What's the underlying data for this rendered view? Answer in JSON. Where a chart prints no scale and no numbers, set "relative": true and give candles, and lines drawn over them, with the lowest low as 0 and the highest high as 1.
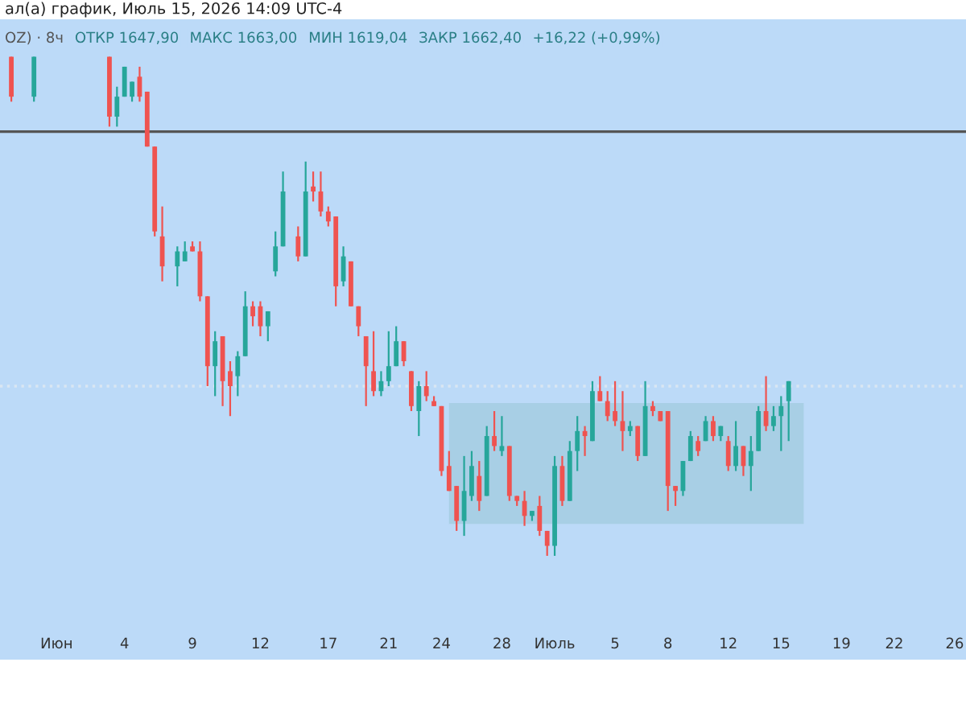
{
  "chart_data": {
    "type": "candlestick",
    "title": "ал(а) график, Июль 15, 2026 14:09 UTC-4",
    "annotations": [
      "OZ) · 8ч",
      "ОТКР 1647,90",
      "МАКС 1663,00",
      "МИН 1619,04",
      "ЗАКР 1662,40",
      "+16,22 (+0,99%)"
    ],
    "relative": true,
    "categories": [
      null,
      null,
      null,
      null,
      null,
      null,
      null,
      "Июн",
      null,
      null,
      null,
      null,
      null,
      null,
      null,
      null,
      "4",
      null,
      null,
      null,
      null,
      null,
      null,
      null,
      null,
      "9",
      null,
      null,
      null,
      null,
      null,
      null,
      null,
      null,
      "12",
      null,
      null,
      null,
      null,
      null,
      null,
      null,
      null,
      "17",
      null,
      null,
      null,
      null,
      null,
      null,
      null,
      "21",
      null,
      null,
      null,
      null,
      null,
      null,
      "24",
      null,
      null,
      null,
      null,
      null,
      null,
      null,
      "28",
      null,
      null,
      null,
      null,
      null,
      null,
      "Июль",
      null,
      null,
      null,
      null,
      null,
      null,
      null,
      "5",
      null,
      null,
      null,
      null,
      null,
      null,
      "8",
      null,
      null,
      null,
      null,
      null,
      null,
      null,
      "12",
      null,
      null,
      null,
      null,
      null,
      null,
      "15",
      null,
      null,
      null,
      null,
      null,
      null,
      null,
      "19",
      null,
      null,
      null,
      null,
      null,
      null,
      "22",
      null,
      null,
      null,
      null,
      null,
      null,
      null,
      "26",
      null
    ],
    "ohlc": [
      null,
      [
        1.0,
        1.0,
        0.91,
        0.92
      ],
      null,
      null,
      [
        0.92,
        1.0,
        0.91,
        1.0
      ],
      null,
      null,
      null,
      null,
      null,
      null,
      null,
      null,
      null,
      [
        1.0,
        1.0,
        0.86,
        0.88
      ],
      [
        0.88,
        0.94,
        0.86,
        0.92
      ],
      [
        0.92,
        0.98,
        0.92,
        0.98
      ],
      [
        0.92,
        0.95,
        0.91,
        0.95
      ],
      [
        0.96,
        0.98,
        0.91,
        0.92
      ],
      [
        0.93,
        0.93,
        0.82,
        0.82
      ],
      [
        0.82,
        0.82,
        0.64,
        0.65
      ],
      [
        0.64,
        0.7,
        0.55,
        0.58
      ],
      null,
      [
        0.58,
        0.62,
        0.54,
        0.61
      ],
      [
        0.59,
        0.63,
        0.59,
        0.61
      ],
      [
        0.62,
        0.63,
        0.61,
        0.61
      ],
      [
        0.61,
        0.63,
        0.51,
        0.52
      ],
      [
        0.52,
        0.52,
        0.34,
        0.38
      ],
      [
        0.38,
        0.45,
        0.32,
        0.43
      ],
      [
        0.44,
        0.44,
        0.3,
        0.35
      ],
      [
        0.37,
        0.39,
        0.28,
        0.34
      ],
      [
        0.36,
        0.41,
        0.32,
        0.4
      ],
      [
        0.4,
        0.53,
        0.4,
        0.5
      ],
      [
        0.5,
        0.51,
        0.46,
        0.48
      ],
      [
        0.5,
        0.51,
        0.44,
        0.46
      ],
      [
        0.46,
        0.49,
        0.43,
        0.49
      ],
      [
        0.57,
        0.65,
        0.56,
        0.62
      ],
      [
        0.62,
        0.77,
        0.62,
        0.73
      ],
      null,
      [
        0.64,
        0.66,
        0.59,
        0.6
      ],
      [
        0.6,
        0.79,
        0.6,
        0.73
      ],
      [
        0.74,
        0.77,
        0.71,
        0.73
      ],
      [
        0.73,
        0.77,
        0.68,
        0.69
      ],
      [
        0.69,
        0.7,
        0.66,
        0.67
      ],
      [
        0.68,
        0.68,
        0.5,
        0.54
      ],
      [
        0.55,
        0.62,
        0.54,
        0.6
      ],
      [
        0.59,
        0.59,
        0.5,
        0.5
      ],
      [
        0.5,
        0.5,
        0.44,
        0.46
      ],
      [
        0.44,
        0.44,
        0.3,
        0.38
      ],
      [
        0.37,
        0.45,
        0.32,
        0.33
      ],
      [
        0.33,
        0.37,
        0.32,
        0.35
      ],
      [
        0.35,
        0.45,
        0.34,
        0.38
      ],
      [
        0.38,
        0.46,
        0.38,
        0.43
      ],
      [
        0.43,
        0.43,
        0.38,
        0.39
      ],
      [
        0.37,
        0.37,
        0.29,
        0.3
      ],
      [
        0.29,
        0.35,
        0.24,
        0.34
      ],
      [
        0.34,
        0.37,
        0.31,
        0.32
      ],
      [
        0.31,
        0.32,
        0.3,
        0.3
      ],
      [
        0.3,
        0.3,
        0.16,
        0.17
      ],
      [
        0.18,
        0.21,
        0.13,
        0.13
      ],
      [
        0.14,
        0.14,
        0.05,
        0.07
      ],
      [
        0.07,
        0.2,
        0.04,
        0.13
      ],
      [
        0.12,
        0.21,
        0.11,
        0.18
      ],
      [
        0.16,
        0.19,
        0.09,
        0.11
      ],
      [
        0.12,
        0.26,
        0.12,
        0.24
      ],
      [
        0.24,
        0.29,
        0.21,
        0.22
      ],
      [
        0.21,
        0.28,
        0.2,
        0.22
      ],
      [
        0.22,
        0.22,
        0.11,
        0.12
      ],
      [
        0.12,
        0.12,
        0.1,
        0.11
      ],
      [
        0.11,
        0.13,
        0.06,
        0.08
      ],
      [
        0.08,
        0.09,
        0.07,
        0.09
      ],
      [
        0.1,
        0.12,
        0.04,
        0.05
      ],
      [
        0.05,
        0.05,
        0.0,
        0.02
      ],
      [
        0.02,
        0.2,
        0.0,
        0.18
      ],
      [
        0.18,
        0.2,
        0.1,
        0.11
      ],
      [
        0.11,
        0.23,
        0.11,
        0.21
      ],
      [
        0.21,
        0.28,
        0.17,
        0.25
      ],
      [
        0.25,
        0.26,
        0.2,
        0.24
      ],
      [
        0.23,
        0.35,
        0.23,
        0.33
      ],
      [
        0.33,
        0.36,
        0.31,
        0.31
      ],
      [
        0.31,
        0.33,
        0.27,
        0.28
      ],
      [
        0.29,
        0.35,
        0.26,
        0.27
      ],
      [
        0.27,
        0.33,
        0.21,
        0.25
      ],
      [
        0.25,
        0.27,
        0.24,
        0.26
      ],
      [
        0.26,
        0.26,
        0.19,
        0.2
      ],
      [
        0.2,
        0.35,
        0.2,
        0.3
      ],
      [
        0.3,
        0.31,
        0.28,
        0.29
      ],
      [
        0.29,
        0.29,
        0.27,
        0.27
      ],
      [
        0.29,
        0.29,
        0.09,
        0.14
      ],
      [
        0.14,
        0.14,
        0.1,
        0.13
      ],
      [
        0.13,
        0.19,
        0.12,
        0.19
      ],
      [
        0.19,
        0.25,
        0.19,
        0.24
      ],
      [
        0.23,
        0.24,
        0.2,
        0.21
      ],
      [
        0.23,
        0.28,
        0.23,
        0.27
      ],
      [
        0.27,
        0.28,
        0.23,
        0.24
      ],
      [
        0.24,
        0.26,
        0.23,
        0.26
      ],
      [
        0.23,
        0.24,
        0.17,
        0.18
      ],
      [
        0.18,
        0.27,
        0.17,
        0.22
      ],
      [
        0.22,
        0.22,
        0.16,
        0.18
      ],
      [
        0.18,
        0.24,
        0.13,
        0.21
      ],
      [
        0.21,
        0.3,
        0.21,
        0.29
      ],
      [
        0.29,
        0.36,
        0.25,
        0.26
      ],
      [
        0.26,
        0.3,
        0.25,
        0.28
      ],
      [
        0.28,
        0.32,
        0.21,
        0.3
      ],
      [
        0.31,
        0.35,
        0.23,
        0.35
      ],
      null,
      null,
      null,
      null,
      null,
      null,
      null,
      null,
      null,
      null,
      null,
      null,
      null,
      null,
      null,
      null,
      null,
      null,
      null,
      null,
      null,
      null,
      null
    ],
    "colors": [
      null,
      "#ef5350",
      null,
      null,
      "#26a69a",
      null,
      null,
      null,
      null,
      null,
      null,
      null,
      null,
      null,
      "#ef5350",
      "#26a69a",
      "#26a69a",
      "#26a69a",
      "#ef5350",
      "#ef5350",
      "#ef5350",
      "#ef5350",
      null,
      "#26a69a",
      "#26a69a",
      "#ef5350",
      "#ef5350",
      "#ef5350",
      "#26a69a",
      "#ef5350",
      "#ef5350",
      "#26a69a",
      "#26a69a",
      "#ef5350",
      "#ef5350",
      "#26a69a",
      "#26a69a",
      "#26a69a",
      null,
      "#ef5350",
      "#26a69a",
      "#ef5350",
      "#ef5350",
      "#ef5350",
      "#ef5350",
      "#26a69a",
      "#ef5350",
      "#ef5350",
      "#ef5350",
      "#ef5350",
      "#26a69a",
      "#26a69a",
      "#26a69a",
      "#ef5350",
      "#ef5350",
      "#26a69a",
      "#ef5350",
      "#ef5350",
      "#ef5350",
      "#ef5350",
      "#ef5350",
      "#26a69a",
      "#26a69a",
      "#ef5350",
      "#26a69a",
      "#ef5350",
      "#26a69a",
      "#ef5350",
      "#ef5350",
      "#ef5350",
      "#26a69a",
      "#ef5350",
      "#ef5350",
      "#26a69a",
      "#ef5350",
      "#26a69a",
      "#26a69a",
      "#ef5350",
      "#26a69a",
      "#ef5350",
      "#ef5350",
      "#ef5350",
      "#ef5350",
      "#26a69a",
      "#ef5350",
      "#26a69a",
      "#ef5350",
      "#ef5350",
      "#ef5350",
      "#ef5350",
      "#26a69a",
      "#26a69a",
      "#ef5350",
      "#26a69a",
      "#ef5350",
      "#26a69a",
      "#ef5350",
      "#26a69a",
      "#ef5350",
      "#26a69a",
      "#26a69a",
      "#ef5350",
      "#26a69a",
      "#26a69a",
      "#26a69a",
      null,
      null,
      null,
      null,
      null,
      null,
      null,
      null,
      null,
      null,
      null,
      null,
      null,
      null,
      null,
      null,
      null,
      null,
      null,
      null,
      null,
      null,
      null
    ],
    "ref_lines": [
      {
        "axis": "y",
        "value": 0.85,
        "color": "#555555",
        "line_style": "solid"
      },
      {
        "axis": "y",
        "value": 0.34,
        "color": "#d9e6f2",
        "line_style": "dotted"
      }
    ]
  }
}
